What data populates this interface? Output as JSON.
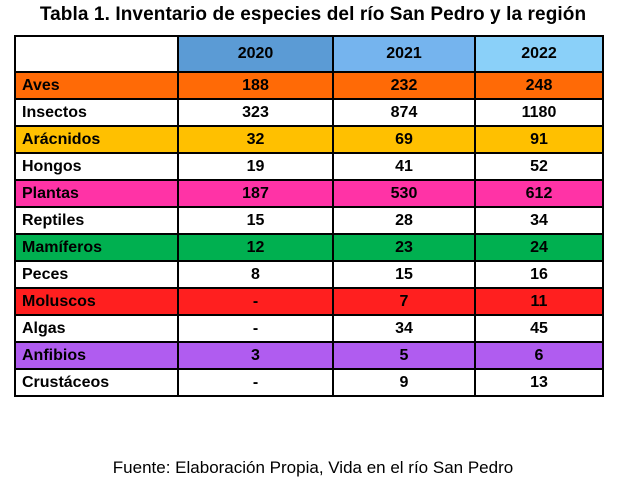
{
  "title": "Tabla 1. Inventario de especies del río San Pedro y la región",
  "caption": "Fuente: Elaboración Propia, Vida en el río San Pedro",
  "header": {
    "corner": "",
    "years": [
      "2020",
      "2021",
      "2022"
    ],
    "year_colors": [
      "#5b9bd5",
      "#75b4ee",
      "#8ad0f9"
    ]
  },
  "rows": [
    {
      "name": "Aves",
      "values": [
        "188",
        "232",
        "248"
      ],
      "color": "#ff6a06"
    },
    {
      "name": "Insectos",
      "values": [
        "323",
        "874",
        "1180"
      ],
      "color": "#ffffff"
    },
    {
      "name": "Arácnidos",
      "values": [
        "32",
        "69",
        "91"
      ],
      "color": "#ffc000"
    },
    {
      "name": "Hongos",
      "values": [
        "19",
        "41",
        "52"
      ],
      "color": "#ffffff"
    },
    {
      "name": "Plantas",
      "values": [
        "187",
        "530",
        "612"
      ],
      "color": "#ff33a6"
    },
    {
      "name": "Reptiles",
      "values": [
        "15",
        "28",
        "34"
      ],
      "color": "#ffffff"
    },
    {
      "name": "Mamíferos",
      "values": [
        "12",
        "23",
        "24"
      ],
      "color": "#00b050"
    },
    {
      "name": "Peces",
      "values": [
        "8",
        "15",
        "16"
      ],
      "color": "#ffffff"
    },
    {
      "name": "Moluscos",
      "values": [
        "-",
        "7",
        "11"
      ],
      "color": "#ff1f1f"
    },
    {
      "name": "Algas",
      "values": [
        "-",
        "34",
        "45"
      ],
      "color": "#ffffff"
    },
    {
      "name": "Anfibios",
      "values": [
        "3",
        "5",
        "6"
      ],
      "color": "#b05cf0"
    },
    {
      "name": "Crustáceos",
      "values": [
        "-",
        "9",
        "13"
      ],
      "color": "#ffffff"
    }
  ]
}
